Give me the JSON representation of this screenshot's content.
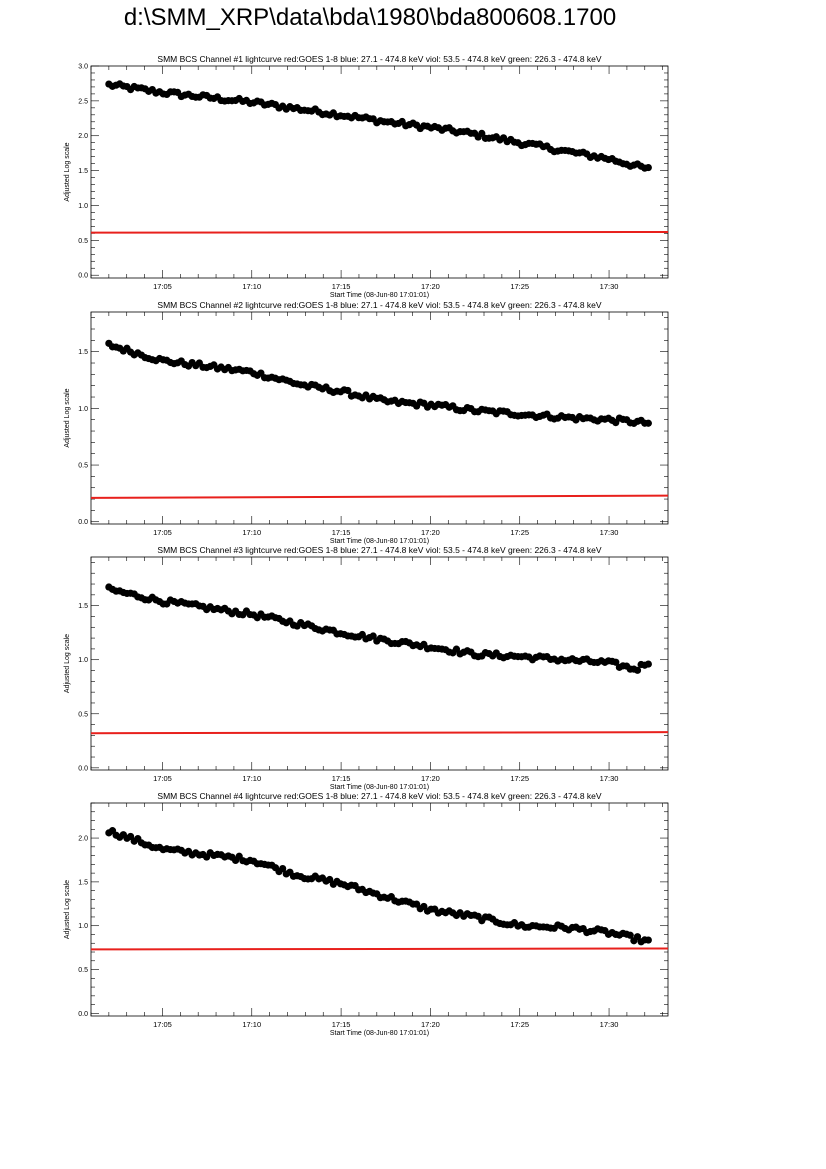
{
  "page": {
    "title": "d:\\SMM_XRP\\data\\bda\\1980\\bda800608.1700"
  },
  "chart_data": [
    {
      "type": "scatter",
      "title": "SMM BCS Channel #1 lightcurve  red:GOES 1-8  blue: 27.1 - 474.8 keV  viol: 53.5 - 474.8 keV  green: 226.3 - 474.8 keV",
      "xlabel": "Start Time (08-Jun-80 17:01:01)",
      "ylabel": "Adjusted Log scale",
      "xlim": [
        1.0,
        33.3
      ],
      "ylim": [
        -0.04,
        3.0
      ],
      "x_ticks": [
        5,
        10,
        15,
        20,
        25,
        30
      ],
      "x_tick_labels": [
        "17:05",
        "17:10",
        "17:15",
        "17:20",
        "17:25",
        "17:30"
      ],
      "y_ticks": [
        0.0,
        0.5,
        1.0,
        1.5,
        2.0,
        2.5,
        3.0
      ],
      "y_tick_labels": [
        "0.0",
        "0.5",
        "1.0",
        "1.5",
        "2.0",
        "2.5",
        "3.0"
      ],
      "series": [
        {
          "color": "#000000",
          "kind": "points",
          "x": [
            2.0,
            5.0,
            10.0,
            15.0,
            17.5,
            20.0,
            22.5,
            25.0,
            27.5,
            30.0,
            32.2
          ],
          "y": [
            2.73,
            2.62,
            2.48,
            2.3,
            2.2,
            2.12,
            2.02,
            1.9,
            1.78,
            1.67,
            1.52
          ]
        },
        {
          "color": "#e8201c",
          "kind": "line",
          "x": [
            1.0,
            33.3
          ],
          "y": [
            0.61,
            0.62
          ]
        }
      ]
    },
    {
      "type": "scatter",
      "title": "SMM BCS Channel #2 lightcurve  red:GOES 1-8  blue: 27.1 - 474.8 keV  viol: 53.5 - 474.8 keV  green: 226.3 - 474.8 keV",
      "xlabel": "Start Time (08-Jun-80 17:01:01)",
      "ylabel": "Adjusted Log scale",
      "xlim": [
        1.0,
        33.3
      ],
      "ylim": [
        -0.02,
        1.85
      ],
      "x_ticks": [
        5,
        10,
        15,
        20,
        25,
        30
      ],
      "x_tick_labels": [
        "17:05",
        "17:10",
        "17:15",
        "17:20",
        "17:25",
        "17:30"
      ],
      "y_ticks": [
        0.0,
        0.5,
        1.0,
        1.5
      ],
      "y_tick_labels": [
        "0.0",
        "0.5",
        "1.0",
        "1.5"
      ],
      "series": [
        {
          "color": "#000000",
          "kind": "points",
          "x": [
            2.0,
            5.0,
            10.0,
            13.0,
            15.0,
            17.5,
            20.0,
            22.5,
            25.0,
            27.5,
            30.0,
            32.2
          ],
          "y": [
            1.56,
            1.42,
            1.32,
            1.2,
            1.15,
            1.06,
            1.03,
            0.98,
            0.95,
            0.92,
            0.9,
            0.87
          ]
        },
        {
          "color": "#e8201c",
          "kind": "line",
          "x": [
            1.0,
            33.3
          ],
          "y": [
            0.21,
            0.23
          ]
        }
      ]
    },
    {
      "type": "scatter",
      "title": "SMM BCS Channel #3 lightcurve  red:GOES 1-8  blue: 27.1 - 474.8 keV  viol: 53.5 - 474.8 keV  green: 226.3 - 474.8 keV",
      "xlabel": "Start Time (08-Jun-80 17:01:01)",
      "ylabel": "Adjusted Log scale",
      "xlim": [
        1.0,
        33.3
      ],
      "ylim": [
        -0.02,
        1.95
      ],
      "x_ticks": [
        5,
        10,
        15,
        20,
        25,
        30
      ],
      "x_tick_labels": [
        "17:05",
        "17:10",
        "17:15",
        "17:20",
        "17:25",
        "17:30"
      ],
      "y_ticks": [
        0.0,
        0.5,
        1.0,
        1.5
      ],
      "y_tick_labels": [
        "0.0",
        "0.5",
        "1.0",
        "1.5"
      ],
      "series": [
        {
          "color": "#000000",
          "kind": "points",
          "x": [
            2.0,
            5.0,
            10.0,
            15.0,
            17.5,
            20.0,
            22.5,
            25.0,
            27.5,
            30.0,
            31.5,
            32.2
          ],
          "y": [
            1.65,
            1.54,
            1.42,
            1.25,
            1.18,
            1.12,
            1.05,
            1.03,
            1.0,
            0.97,
            0.91,
            0.98
          ]
        },
        {
          "color": "#e8201c",
          "kind": "line",
          "x": [
            1.0,
            33.3
          ],
          "y": [
            0.32,
            0.33
          ]
        }
      ]
    },
    {
      "type": "scatter",
      "title": "SMM BCS Channel #4 lightcurve  red:GOES 1-8  blue: 27.1 - 474.8 keV  viol: 53.5 - 474.8 keV  green: 226.3 - 474.8 keV",
      "xlabel": "Start Time (08-Jun-80 17:01:01)",
      "ylabel": "Adjusted Log scale",
      "xlim": [
        1.0,
        33.3
      ],
      "ylim": [
        -0.03,
        2.4
      ],
      "x_ticks": [
        5,
        10,
        15,
        20,
        25,
        30
      ],
      "x_tick_labels": [
        "17:05",
        "17:10",
        "17:15",
        "17:20",
        "17:25",
        "17:30"
      ],
      "y_ticks": [
        0.0,
        0.5,
        1.0,
        1.5,
        2.0
      ],
      "y_tick_labels": [
        "0.0",
        "0.5",
        "1.0",
        "1.5",
        "2.0"
      ],
      "series": [
        {
          "color": "#000000",
          "kind": "points",
          "x": [
            2.0,
            5.0,
            10.0,
            12.5,
            15.0,
            17.5,
            20.0,
            22.5,
            25.0,
            27.5,
            30.0,
            32.2
          ],
          "y": [
            2.08,
            1.87,
            1.75,
            1.58,
            1.48,
            1.33,
            1.18,
            1.1,
            1.0,
            0.98,
            0.92,
            0.82
          ]
        },
        {
          "color": "#e8201c",
          "kind": "line",
          "x": [
            1.0,
            33.3
          ],
          "y": [
            0.73,
            0.74
          ]
        }
      ]
    }
  ]
}
